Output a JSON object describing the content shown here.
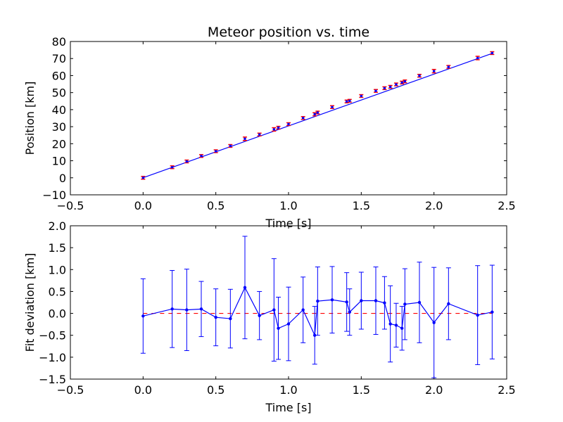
{
  "chart_data": [
    {
      "type": "line",
      "title": "Meteor position vs. time",
      "xlabel": "Time [s]",
      "ylabel": "Position [km]",
      "xlim": [
        -0.5,
        2.5
      ],
      "ylim": [
        -10,
        80
      ],
      "xticks": [
        "−0.5",
        "0.0",
        "0.5",
        "1.0",
        "1.5",
        "2.0",
        "2.5"
      ],
      "yticks": [
        "−10",
        "0",
        "10",
        "20",
        "30",
        "40",
        "50",
        "60",
        "70",
        "80"
      ],
      "grid": false,
      "colors": {
        "points": "#0000ff",
        "errorbars": "#ff0000",
        "fit": "#0000ff"
      },
      "fit": {
        "x": [
          0.0,
          2.4
        ],
        "y": [
          0.05,
          73.0
        ]
      },
      "series": [
        {
          "x": [
            0.0,
            0.2,
            0.3,
            0.4,
            0.5,
            0.6,
            0.7,
            0.8,
            0.9,
            0.93,
            1.0,
            1.1,
            1.18,
            1.2,
            1.3,
            1.4,
            1.42,
            1.5,
            1.6,
            1.66,
            1.7,
            1.74,
            1.78,
            1.8,
            1.9,
            2.0,
            2.1,
            2.3,
            2.4
          ],
          "y": [
            0.0,
            6.2,
            9.6,
            12.8,
            15.6,
            18.7,
            22.9,
            25.4,
            28.4,
            29.4,
            31.5,
            35.1,
            37.3,
            38.3,
            41.5,
            44.8,
            45.2,
            48.0,
            51.0,
            52.6,
            53.4,
            54.8,
            55.9,
            56.6,
            59.9,
            62.6,
            65.1,
            70.3,
            73.2
          ],
          "yerr": [
            0.8,
            0.8,
            0.8,
            0.8,
            0.8,
            0.8,
            1.0,
            0.8,
            1.0,
            0.8,
            0.8,
            0.8,
            0.9,
            0.8,
            0.8,
            0.8,
            0.8,
            0.8,
            0.8,
            0.8,
            0.8,
            0.8,
            0.8,
            0.8,
            0.8,
            1.0,
            0.8,
            1.0,
            0.8
          ]
        }
      ]
    },
    {
      "type": "line",
      "title": "",
      "xlabel": "Time [s]",
      "ylabel": "Fit deviation [km]",
      "xlim": [
        -0.5,
        2.5
      ],
      "ylim": [
        -1.5,
        2.0
      ],
      "xticks": [
        "−0.5",
        "0.0",
        "0.5",
        "1.0",
        "1.5",
        "2.0",
        "2.5"
      ],
      "yticks": [
        "−1.5",
        "−1.0",
        "−0.5",
        "0.0",
        "0.5",
        "1.0",
        "1.5",
        "2.0"
      ],
      "grid": false,
      "colors": {
        "points": "#0000ff",
        "errorbars": "#0000ff",
        "zero_line": "#ff0000"
      },
      "reference_line": {
        "y": 0.0,
        "x": [
          0.0,
          2.4
        ]
      },
      "series": [
        {
          "x": [
            0.0,
            0.2,
            0.3,
            0.4,
            0.5,
            0.6,
            0.7,
            0.8,
            0.9,
            0.93,
            1.0,
            1.1,
            1.18,
            1.2,
            1.3,
            1.4,
            1.42,
            1.5,
            1.6,
            1.66,
            1.7,
            1.74,
            1.78,
            1.8,
            1.9,
            2.0,
            2.1,
            2.3,
            2.4
          ],
          "y": [
            -0.06,
            0.1,
            0.08,
            0.1,
            -0.09,
            -0.12,
            0.59,
            -0.05,
            0.08,
            -0.34,
            -0.24,
            0.08,
            -0.5,
            0.28,
            0.31,
            0.26,
            0.03,
            0.29,
            0.29,
            0.24,
            -0.24,
            -0.27,
            -0.34,
            0.21,
            0.25,
            -0.21,
            0.22,
            -0.04,
            0.03
          ],
          "yerr": [
            0.85,
            0.88,
            0.93,
            0.63,
            0.65,
            0.67,
            1.17,
            0.55,
            1.17,
            0.71,
            0.84,
            0.75,
            0.66,
            0.78,
            0.76,
            0.67,
            0.53,
            0.65,
            0.77,
            0.6,
            0.87,
            0.5,
            0.5,
            0.81,
            0.92,
            1.26,
            0.82,
            1.13,
            1.07
          ]
        }
      ]
    }
  ]
}
